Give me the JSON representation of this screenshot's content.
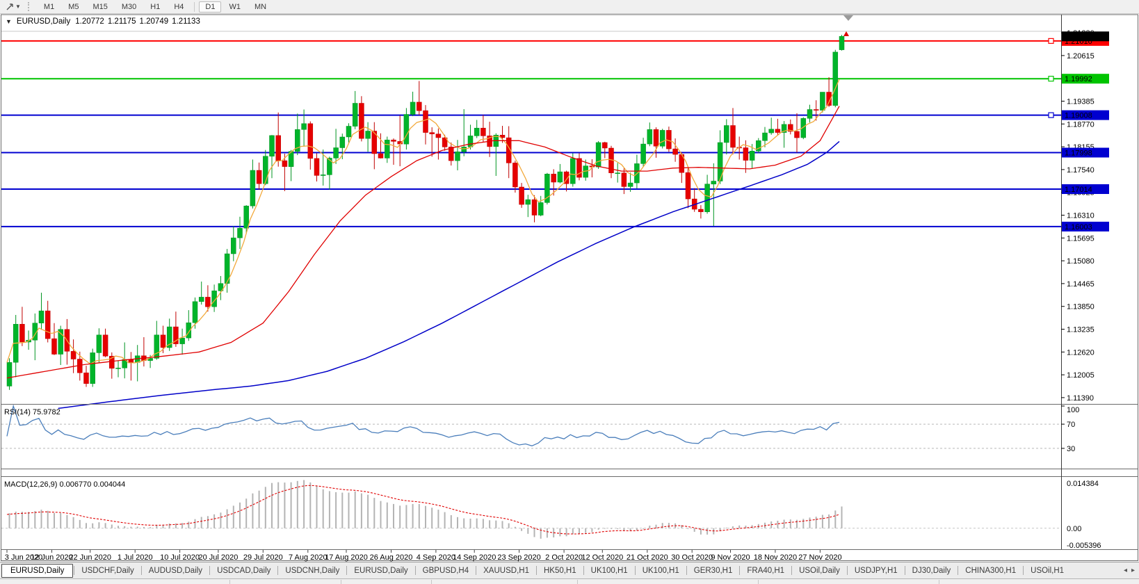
{
  "toolbar": {
    "timeframes": [
      "M1",
      "M5",
      "M15",
      "M30",
      "H1",
      "H4",
      "D1",
      "W1",
      "MN"
    ],
    "active_timeframe": "D1"
  },
  "chart_header": {
    "dropdown_glyph": "▼",
    "symbol": "EURUSD,Daily",
    "open": "1.20772",
    "high": "1.21175",
    "low": "1.20749",
    "close": "1.21133"
  },
  "chart_data": {
    "type": "candlestick",
    "symbol": "EURUSD",
    "timeframe": "Daily",
    "ylim": [
      1.1122,
      1.2172
    ],
    "y_axis_ticks": [
      "1.21230",
      "1.20615",
      "1.19385",
      "1.18770",
      "1.18155",
      "1.17540",
      "1.16925",
      "1.16310",
      "1.15695",
      "1.15080",
      "1.14465",
      "1.13850",
      "1.13235",
      "1.12620",
      "1.12005",
      "1.11390"
    ],
    "x_dates": [
      {
        "label": "3 Jun 2020",
        "bar": 0
      },
      {
        "label": "12 Jun 2020",
        "bar": 7
      },
      {
        "label": "22 Jun 2020",
        "bar": 13
      },
      {
        "label": "1 Jul 2020",
        "bar": 20
      },
      {
        "label": "10 Jul 2020",
        "bar": 27
      },
      {
        "label": "20 Jul 2020",
        "bar": 33
      },
      {
        "label": "29 Jul 2020",
        "bar": 40
      },
      {
        "label": "7 Aug 2020",
        "bar": 47
      },
      {
        "label": "17 Aug 2020",
        "bar": 53
      },
      {
        "label": "26 Aug 2020",
        "bar": 60
      },
      {
        "label": "4 Sep 2020",
        "bar": 67
      },
      {
        "label": "14 Sep 2020",
        "bar": 73
      },
      {
        "label": "23 Sep 2020",
        "bar": 80
      },
      {
        "label": "2 Oct 2020",
        "bar": 87
      },
      {
        "label": "12 Oct 2020",
        "bar": 93
      },
      {
        "label": "21 Oct 2020",
        "bar": 100
      },
      {
        "label": "30 Oct 2020",
        "bar": 107
      },
      {
        "label": "9 Nov 2020",
        "bar": 113
      },
      {
        "label": "18 Nov 2020",
        "bar": 120
      },
      {
        "label": "27 Nov 2020",
        "bar": 127
      }
    ],
    "ohlc": [
      [
        1.117,
        1.1245,
        1.116,
        1.1234
      ],
      [
        1.1234,
        1.1362,
        1.1194,
        1.1337
      ],
      [
        1.1337,
        1.1384,
        1.1278,
        1.1289
      ],
      [
        1.1289,
        1.132,
        1.1268,
        1.1294
      ],
      [
        1.1294,
        1.1366,
        1.124,
        1.134
      ],
      [
        1.134,
        1.1422,
        1.1322,
        1.1373
      ],
      [
        1.1373,
        1.14,
        1.1288,
        1.1298
      ],
      [
        1.1298,
        1.134,
        1.1254,
        1.1256
      ],
      [
        1.1256,
        1.1333,
        1.1227,
        1.1323
      ],
      [
        1.1323,
        1.1351,
        1.1228,
        1.1264
      ],
      [
        1.1264,
        1.1296,
        1.1205,
        1.1243
      ],
      [
        1.1243,
        1.1263,
        1.1185,
        1.1206
      ],
      [
        1.1206,
        1.1225,
        1.1168,
        1.1177
      ],
      [
        1.1177,
        1.1271,
        1.1168,
        1.126
      ],
      [
        1.126,
        1.1326,
        1.1233,
        1.1308
      ],
      [
        1.1308,
        1.1325,
        1.1248,
        1.1251
      ],
      [
        1.1251,
        1.1261,
        1.119,
        1.1218
      ],
      [
        1.1218,
        1.1239,
        1.1194,
        1.1219
      ],
      [
        1.1219,
        1.1288,
        1.1191,
        1.1242
      ],
      [
        1.1242,
        1.1262,
        1.1185,
        1.1234
      ],
      [
        1.1234,
        1.1281,
        1.1183,
        1.1252
      ],
      [
        1.1252,
        1.1302,
        1.1223,
        1.1239
      ],
      [
        1.1239,
        1.1254,
        1.1219,
        1.1245
      ],
      [
        1.1245,
        1.1346,
        1.1241,
        1.1308
      ],
      [
        1.1308,
        1.1333,
        1.1259,
        1.1274
      ],
      [
        1.1274,
        1.1352,
        1.1265,
        1.133
      ],
      [
        1.133,
        1.1371,
        1.1276,
        1.1284
      ],
      [
        1.1284,
        1.1325,
        1.1255,
        1.13
      ],
      [
        1.13,
        1.1375,
        1.1292,
        1.1341
      ],
      [
        1.1341,
        1.1409,
        1.1325,
        1.1398
      ],
      [
        1.1398,
        1.1452,
        1.139,
        1.141
      ],
      [
        1.141,
        1.1442,
        1.1371,
        1.1384
      ],
      [
        1.1384,
        1.1444,
        1.137,
        1.1427
      ],
      [
        1.1427,
        1.1467,
        1.1402,
        1.1447
      ],
      [
        1.1447,
        1.154,
        1.1422,
        1.1527
      ],
      [
        1.1527,
        1.1601,
        1.1507,
        1.157
      ],
      [
        1.157,
        1.1627,
        1.154,
        1.1596
      ],
      [
        1.1596,
        1.1658,
        1.1581,
        1.1656
      ],
      [
        1.1656,
        1.1781,
        1.1649,
        1.1752
      ],
      [
        1.1752,
        1.1773,
        1.17,
        1.1716
      ],
      [
        1.1716,
        1.1807,
        1.1712,
        1.179
      ],
      [
        1.179,
        1.1847,
        1.1731,
        1.1846
      ],
      [
        1.1846,
        1.1908,
        1.1762,
        1.1778
      ],
      [
        1.1778,
        1.1797,
        1.1696,
        1.1762
      ],
      [
        1.1762,
        1.1807,
        1.1723,
        1.1803
      ],
      [
        1.1803,
        1.1905,
        1.1793,
        1.1862
      ],
      [
        1.1862,
        1.1916,
        1.1816,
        1.1878
      ],
      [
        1.1878,
        1.1884,
        1.1754,
        1.1784
      ],
      [
        1.1784,
        1.1798,
        1.1722,
        1.1738
      ],
      [
        1.1738,
        1.1808,
        1.1711,
        1.174
      ],
      [
        1.174,
        1.1789,
        1.17,
        1.1785
      ],
      [
        1.1785,
        1.1864,
        1.1769,
        1.1813
      ],
      [
        1.1813,
        1.1851,
        1.1782,
        1.1842
      ],
      [
        1.1842,
        1.1879,
        1.1823,
        1.1871
      ],
      [
        1.1871,
        1.1966,
        1.1863,
        1.1933
      ],
      [
        1.1933,
        1.1952,
        1.183,
        1.1838
      ],
      [
        1.1838,
        1.1882,
        1.1802,
        1.1858
      ],
      [
        1.1858,
        1.1882,
        1.1755,
        1.1797
      ],
      [
        1.1797,
        1.1852,
        1.1784,
        1.1785
      ],
      [
        1.1785,
        1.1843,
        1.1772,
        1.1834
      ],
      [
        1.1834,
        1.1838,
        1.1767,
        1.183
      ],
      [
        1.183,
        1.19,
        1.1763,
        1.1823
      ],
      [
        1.1823,
        1.192,
        1.1808,
        1.1903
      ],
      [
        1.1903,
        1.1964,
        1.1898,
        1.1936
      ],
      [
        1.1936,
        1.1993,
        1.1901,
        1.1913
      ],
      [
        1.1913,
        1.1928,
        1.1822,
        1.1854
      ],
      [
        1.1854,
        1.1868,
        1.1789,
        1.185
      ],
      [
        1.185,
        1.1865,
        1.1781,
        1.184
      ],
      [
        1.184,
        1.1848,
        1.1805,
        1.1815
      ],
      [
        1.1815,
        1.1827,
        1.1765,
        1.1778
      ],
      [
        1.1778,
        1.1834,
        1.1752,
        1.1802
      ],
      [
        1.1802,
        1.1917,
        1.179,
        1.1815
      ],
      [
        1.1815,
        1.1875,
        1.1808,
        1.1845
      ],
      [
        1.1845,
        1.1888,
        1.1839,
        1.1866
      ],
      [
        1.1866,
        1.1901,
        1.1827,
        1.1845
      ],
      [
        1.1845,
        1.1883,
        1.1788,
        1.1816
      ],
      [
        1.1816,
        1.1852,
        1.1737,
        1.1847
      ],
      [
        1.1847,
        1.1872,
        1.1826,
        1.184
      ],
      [
        1.184,
        1.1871,
        1.1731,
        1.1772
      ],
      [
        1.1772,
        1.1778,
        1.1692,
        1.1707
      ],
      [
        1.1707,
        1.1718,
        1.1651,
        1.166
      ],
      [
        1.166,
        1.1686,
        1.1626,
        1.1673
      ],
      [
        1.1673,
        1.1685,
        1.1612,
        1.1631
      ],
      [
        1.1631,
        1.1683,
        1.1628,
        1.1665
      ],
      [
        1.1665,
        1.1745,
        1.166,
        1.1742
      ],
      [
        1.1742,
        1.1755,
        1.1684,
        1.172
      ],
      [
        1.172,
        1.1769,
        1.1717,
        1.1748
      ],
      [
        1.1748,
        1.1751,
        1.1695,
        1.1716
      ],
      [
        1.1716,
        1.1798,
        1.1708,
        1.1784
      ],
      [
        1.1784,
        1.1798,
        1.1725,
        1.1733
      ],
      [
        1.1733,
        1.1781,
        1.1724,
        1.1764
      ],
      [
        1.1764,
        1.1782,
        1.1733,
        1.1761
      ],
      [
        1.1761,
        1.1831,
        1.1756,
        1.1827
      ],
      [
        1.1827,
        1.1829,
        1.1785,
        1.1812
      ],
      [
        1.1812,
        1.1818,
        1.1731,
        1.1745
      ],
      [
        1.1745,
        1.1772,
        1.1719,
        1.1745
      ],
      [
        1.1745,
        1.1758,
        1.1688,
        1.1708
      ],
      [
        1.1708,
        1.1746,
        1.1694,
        1.1718
      ],
      [
        1.1718,
        1.1794,
        1.1703,
        1.177
      ],
      [
        1.177,
        1.184,
        1.1762,
        1.1823
      ],
      [
        1.1823,
        1.1881,
        1.1817,
        1.1862
      ],
      [
        1.1862,
        1.1868,
        1.1786,
        1.1817
      ],
      [
        1.1817,
        1.1864,
        1.1811,
        1.186
      ],
      [
        1.186,
        1.187,
        1.1802,
        1.181
      ],
      [
        1.181,
        1.1838,
        1.1775,
        1.1795
      ],
      [
        1.1795,
        1.18,
        1.1718,
        1.1746
      ],
      [
        1.1746,
        1.1759,
        1.165,
        1.1675
      ],
      [
        1.1675,
        1.1704,
        1.164,
        1.1647
      ],
      [
        1.1647,
        1.1658,
        1.1622,
        1.164
      ],
      [
        1.164,
        1.174,
        1.1635,
        1.1715
      ],
      [
        1.1715,
        1.1771,
        1.1602,
        1.1723
      ],
      [
        1.1723,
        1.186,
        1.1715,
        1.1827
      ],
      [
        1.1827,
        1.189,
        1.1795,
        1.1873
      ],
      [
        1.1873,
        1.192,
        1.1795,
        1.1814
      ],
      [
        1.1814,
        1.1843,
        1.1781,
        1.1813
      ],
      [
        1.1813,
        1.1833,
        1.1745,
        1.1779
      ],
      [
        1.1779,
        1.1823,
        1.1758,
        1.1804
      ],
      [
        1.1804,
        1.1839,
        1.1799,
        1.1832
      ],
      [
        1.1832,
        1.1869,
        1.1814,
        1.1853
      ],
      [
        1.1853,
        1.1894,
        1.1848,
        1.1863
      ],
      [
        1.1863,
        1.1891,
        1.1846,
        1.1854
      ],
      [
        1.1854,
        1.1885,
        1.1813,
        1.1876
      ],
      [
        1.1876,
        1.1889,
        1.1849,
        1.1857
      ],
      [
        1.1857,
        1.1906,
        1.18,
        1.184
      ],
      [
        1.184,
        1.1895,
        1.1836,
        1.1892
      ],
      [
        1.1892,
        1.1929,
        1.1881,
        1.1916
      ],
      [
        1.1916,
        1.1941,
        1.1886,
        1.1914
      ],
      [
        1.1914,
        1.1963,
        1.1908,
        1.1963
      ],
      [
        1.1963,
        1.2003,
        1.1923,
        1.1927
      ],
      [
        1.1927,
        1.2077,
        1.1922,
        1.2071
      ],
      [
        1.20772,
        1.21175,
        1.20749,
        1.21133
      ]
    ],
    "colors": {
      "up": "#00b42a",
      "up_edge": "#009422",
      "down": "#e60000",
      "down_edge": "#c00000",
      "ma_fast": "#f2a93b",
      "ma_mid": "#e00000",
      "ma_slow": "#0000c8",
      "rsi": "#4a7ebb",
      "macd_hist": "#b4b4b4",
      "macd_signal": "#e00000",
      "hline_red": "#ff0000",
      "hline_green": "#00c400",
      "hline_blue": "#0000d0",
      "hline_gray": "#c8c8c8"
    },
    "hlines": [
      {
        "price": 1.2101,
        "label": "1.21010",
        "color": "#ff0000",
        "width": 2,
        "handle": true
      },
      {
        "price": 1.19992,
        "label": "1.19992",
        "color": "#00c400",
        "width": 2,
        "handle": true
      },
      {
        "price": 1.19008,
        "label": "1.19008",
        "color": "#0000d0",
        "width": 2,
        "handle": true
      },
      {
        "price": 1.17998,
        "label": "1.17998",
        "color": "#0000d0",
        "width": 2,
        "handle": false
      },
      {
        "price": 1.17014,
        "label": "1.17014",
        "color": "#0000d0",
        "width": 2,
        "handle": false
      },
      {
        "price": 1.16003,
        "label": "1.16003",
        "color": "#0000d0",
        "width": 2,
        "handle": false
      },
      {
        "price": 1.2127,
        "label": null,
        "color": "#c8c8c8",
        "width": 1,
        "handle": false
      }
    ],
    "current_price": {
      "value": 1.21133,
      "label": "1.21133",
      "bg": "#000000"
    },
    "ma_fast_period": 5,
    "ma_mid_points": [
      [
        0,
        1.1192
      ],
      [
        6,
        1.121
      ],
      [
        12,
        1.1228
      ],
      [
        18,
        1.124
      ],
      [
        24,
        1.125
      ],
      [
        30,
        1.1262
      ],
      [
        35,
        1.1288
      ],
      [
        40,
        1.134
      ],
      [
        44,
        1.1425
      ],
      [
        48,
        1.1525
      ],
      [
        52,
        1.1615
      ],
      [
        56,
        1.1685
      ],
      [
        60,
        1.1735
      ],
      [
        64,
        1.1778
      ],
      [
        68,
        1.1806
      ],
      [
        72,
        1.1822
      ],
      [
        76,
        1.1832
      ],
      [
        80,
        1.1832
      ],
      [
        84,
        1.1815
      ],
      [
        88,
        1.1788
      ],
      [
        92,
        1.1764
      ],
      [
        96,
        1.175
      ],
      [
        100,
        1.175
      ],
      [
        104,
        1.1758
      ],
      [
        108,
        1.176
      ],
      [
        112,
        1.1758
      ],
      [
        116,
        1.1756
      ],
      [
        120,
        1.1766
      ],
      [
        124,
        1.179
      ],
      [
        127,
        1.1832
      ],
      [
        130,
        1.1925
      ]
    ],
    "ma_slow_points": [
      [
        8,
        1.111
      ],
      [
        16,
        1.1128
      ],
      [
        24,
        1.1145
      ],
      [
        32,
        1.116
      ],
      [
        38,
        1.117
      ],
      [
        44,
        1.1185
      ],
      [
        50,
        1.121
      ],
      [
        56,
        1.1245
      ],
      [
        62,
        1.129
      ],
      [
        68,
        1.134
      ],
      [
        74,
        1.1395
      ],
      [
        80,
        1.145
      ],
      [
        86,
        1.1505
      ],
      [
        92,
        1.1555
      ],
      [
        98,
        1.16
      ],
      [
        104,
        1.164
      ],
      [
        110,
        1.1675
      ],
      [
        116,
        1.171
      ],
      [
        121,
        1.174
      ],
      [
        125,
        1.1768
      ],
      [
        128,
        1.18
      ],
      [
        130,
        1.183
      ]
    ],
    "rsi": {
      "title": "RSI(14) 75.9782",
      "period": 14,
      "last": 75.9782,
      "levels": [
        100,
        70,
        30
      ],
      "level_labels": [
        "100",
        "70",
        "30"
      ]
    },
    "macd": {
      "title": "MACD(12,26,9) 0.006770 0.004044",
      "fast": 12,
      "slow": 26,
      "signal": 9,
      "value": 0.00677,
      "signal_value": 0.004044,
      "scale_max": 0.014384,
      "scale_min": -0.005396,
      "scale_labels": [
        "0.014384",
        "0.00",
        "-0.005396"
      ]
    }
  },
  "tabs": {
    "items": [
      "EURUSD,Daily",
      "USDCHF,Daily",
      "AUDUSD,Daily",
      "USDCAD,Daily",
      "USDCNH,Daily",
      "EURUSD,Daily",
      "GBPUSD,H4",
      "XAUUSD,H1",
      "HK50,H1",
      "UK100,H1",
      "UK100,H1",
      "GER30,H1",
      "FRA40,H1",
      "USOil,Daily",
      "USDJPY,H1",
      "DJ30,Daily",
      "CHINA300,H1",
      "USOil,H1"
    ],
    "active_index": 0,
    "scroll_left": "◂",
    "scroll_right": "▸"
  }
}
